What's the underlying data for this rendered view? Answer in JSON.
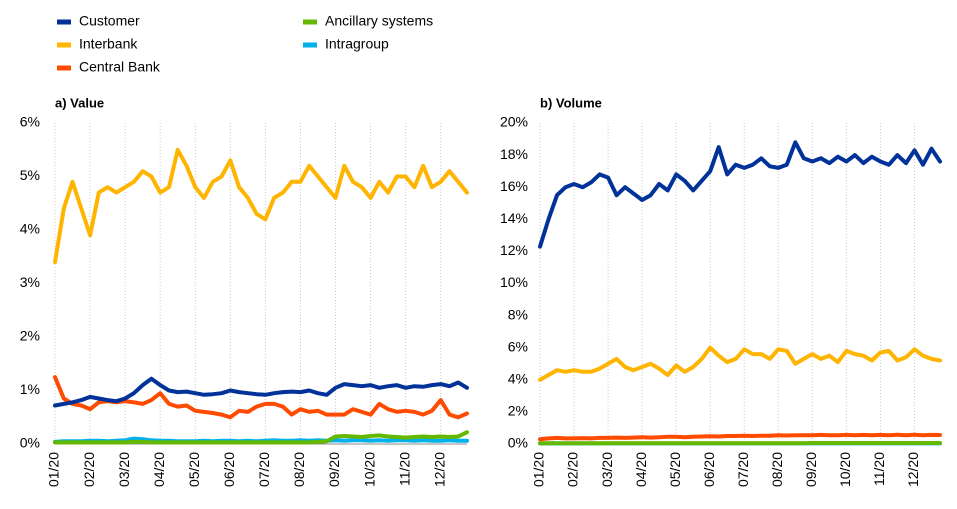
{
  "chart_data": [
    {
      "type": "line",
      "title": "a) Value",
      "categories": [
        "01/20",
        null,
        null,
        null,
        "02/20",
        null,
        null,
        null,
        "03/20",
        null,
        null,
        null,
        "04/20",
        null,
        null,
        null,
        "05/20",
        null,
        null,
        null,
        "06/20",
        null,
        null,
        null,
        "07/20",
        null,
        null,
        null,
        "08/20",
        null,
        null,
        null,
        "09/20",
        null,
        null,
        null,
        "10/20",
        null,
        null,
        null,
        "11/20",
        null,
        null,
        null,
        "12/20",
        null,
        null,
        null
      ],
      "ylim": [
        0,
        6
      ],
      "yticks": [
        {
          "value": 0,
          "label": "0%"
        },
        {
          "value": 1,
          "label": "1%"
        },
        {
          "value": 2,
          "label": "2%"
        },
        {
          "value": 3,
          "label": "3%"
        },
        {
          "value": 4,
          "label": "4%"
        },
        {
          "value": 5,
          "label": "5%"
        },
        {
          "value": 6,
          "label": "6%"
        }
      ],
      "series": [
        {
          "name": "Customer",
          "color": "#003299",
          "values": [
            0.72,
            0.75,
            0.78,
            0.82,
            0.88,
            0.85,
            0.82,
            0.8,
            0.85,
            0.95,
            1.1,
            1.22,
            1.1,
            1.0,
            0.97,
            0.98,
            0.95,
            0.92,
            0.93,
            0.95,
            1.0,
            0.97,
            0.95,
            0.93,
            0.92,
            0.95,
            0.97,
            0.98,
            0.97,
            1.0,
            0.95,
            0.92,
            1.05,
            1.12,
            1.1,
            1.08,
            1.1,
            1.05,
            1.08,
            1.1,
            1.05,
            1.08,
            1.07,
            1.1,
            1.12,
            1.08,
            1.15,
            1.05
          ]
        },
        {
          "name": "Interbank",
          "color": "#ffb400",
          "values": [
            3.4,
            4.4,
            4.9,
            4.4,
            3.9,
            4.7,
            4.8,
            4.7,
            4.8,
            4.9,
            5.1,
            5.0,
            4.7,
            4.8,
            5.5,
            5.2,
            4.8,
            4.6,
            4.9,
            5.0,
            5.3,
            4.8,
            4.6,
            4.3,
            4.2,
            4.6,
            4.7,
            4.9,
            4.9,
            5.2,
            5.0,
            4.8,
            4.6,
            5.2,
            4.9,
            4.8,
            4.6,
            4.9,
            4.7,
            5.0,
            5.0,
            4.8,
            5.2,
            4.8,
            4.9,
            5.1,
            4.9,
            4.7
          ]
        },
        {
          "name": "Central Bank",
          "color": "#ff4b00",
          "values": [
            1.25,
            0.85,
            0.75,
            0.72,
            0.65,
            0.78,
            0.8,
            0.78,
            0.8,
            0.78,
            0.75,
            0.82,
            0.95,
            0.75,
            0.7,
            0.72,
            0.62,
            0.6,
            0.58,
            0.55,
            0.5,
            0.62,
            0.6,
            0.7,
            0.75,
            0.75,
            0.7,
            0.55,
            0.65,
            0.6,
            0.62,
            0.55,
            0.55,
            0.55,
            0.65,
            0.6,
            0.55,
            0.75,
            0.65,
            0.6,
            0.62,
            0.6,
            0.55,
            0.62,
            0.82,
            0.55,
            0.5,
            0.57
          ]
        },
        {
          "name": "Ancillary systems",
          "color": "#65b800",
          "values": [
            0.03,
            0.03,
            0.03,
            0.03,
            0.03,
            0.03,
            0.03,
            0.03,
            0.03,
            0.04,
            0.04,
            0.03,
            0.03,
            0.03,
            0.03,
            0.03,
            0.03,
            0.03,
            0.03,
            0.03,
            0.03,
            0.03,
            0.03,
            0.03,
            0.03,
            0.03,
            0.03,
            0.03,
            0.03,
            0.03,
            0.04,
            0.05,
            0.14,
            0.15,
            0.14,
            0.13,
            0.15,
            0.16,
            0.14,
            0.13,
            0.12,
            0.13,
            0.14,
            0.13,
            0.14,
            0.13,
            0.14,
            0.22
          ]
        },
        {
          "name": "Intragroup",
          "color": "#00b1ea",
          "values": [
            0.04,
            0.05,
            0.05,
            0.05,
            0.06,
            0.06,
            0.05,
            0.06,
            0.07,
            0.1,
            0.09,
            0.07,
            0.06,
            0.06,
            0.05,
            0.05,
            0.05,
            0.06,
            0.05,
            0.06,
            0.06,
            0.05,
            0.06,
            0.05,
            0.06,
            0.07,
            0.06,
            0.06,
            0.07,
            0.06,
            0.07,
            0.06,
            0.07,
            0.06,
            0.07,
            0.07,
            0.06,
            0.07,
            0.06,
            0.07,
            0.07,
            0.06,
            0.07,
            0.06,
            0.06,
            0.07,
            0.06,
            0.06
          ]
        }
      ]
    },
    {
      "type": "line",
      "title": "b) Volume",
      "categories": [
        "01/20",
        null,
        null,
        null,
        "02/20",
        null,
        null,
        null,
        "03/20",
        null,
        null,
        null,
        "04/20",
        null,
        null,
        null,
        "05/20",
        null,
        null,
        null,
        "06/20",
        null,
        null,
        null,
        "07/20",
        null,
        null,
        null,
        "08/20",
        null,
        null,
        null,
        "09/20",
        null,
        null,
        null,
        "10/20",
        null,
        null,
        null,
        "11/20",
        null,
        null,
        null,
        "12/20",
        null,
        null,
        null
      ],
      "ylim": [
        0,
        20
      ],
      "yticks": [
        {
          "value": 0,
          "label": "0%"
        },
        {
          "value": 2,
          "label": "2%"
        },
        {
          "value": 4,
          "label": "4%"
        },
        {
          "value": 6,
          "label": "6%"
        },
        {
          "value": 8,
          "label": "8%"
        },
        {
          "value": 10,
          "label": "10%"
        },
        {
          "value": 12,
          "label": "12%"
        },
        {
          "value": 14,
          "label": "14%"
        },
        {
          "value": 16,
          "label": "16%"
        },
        {
          "value": 18,
          "label": "18%"
        },
        {
          "value": 20,
          "label": "20%"
        }
      ],
      "series": [
        {
          "name": "Customer",
          "color": "#003299",
          "values": [
            12.3,
            14,
            15.5,
            16,
            16.2,
            16,
            16.3,
            16.8,
            16.6,
            15.5,
            16,
            15.6,
            15.2,
            15.5,
            16.2,
            15.8,
            16.8,
            16.4,
            15.8,
            16.4,
            17,
            18.5,
            16.8,
            17.4,
            17.2,
            17.4,
            17.8,
            17.3,
            17.2,
            17.4,
            18.8,
            17.8,
            17.6,
            17.8,
            17.5,
            17.9,
            17.6,
            18,
            17.5,
            17.9,
            17.6,
            17.4,
            18,
            17.5,
            18.3,
            17.4,
            18.4,
            17.6
          ]
        },
        {
          "name": "Interbank",
          "color": "#ffb400",
          "values": [
            4.0,
            4.3,
            4.6,
            4.5,
            4.6,
            4.5,
            4.5,
            4.7,
            5.0,
            5.3,
            4.8,
            4.6,
            4.8,
            5.0,
            4.7,
            4.3,
            4.9,
            4.5,
            4.8,
            5.3,
            6.0,
            5.5,
            5.1,
            5.3,
            5.9,
            5.6,
            5.6,
            5.3,
            5.9,
            5.8,
            5.0,
            5.3,
            5.6,
            5.3,
            5.5,
            5.1,
            5.8,
            5.6,
            5.5,
            5.2,
            5.7,
            5.8,
            5.2,
            5.4,
            5.9,
            5.5,
            5.3,
            5.2
          ]
        },
        {
          "name": "Central Bank",
          "color": "#ff4b00",
          "values": [
            0.3,
            0.35,
            0.38,
            0.35,
            0.35,
            0.37,
            0.35,
            0.38,
            0.38,
            0.4,
            0.38,
            0.4,
            0.42,
            0.4,
            0.42,
            0.45,
            0.45,
            0.42,
            0.45,
            0.47,
            0.48,
            0.47,
            0.5,
            0.5,
            0.52,
            0.5,
            0.52,
            0.52,
            0.55,
            0.53,
            0.55,
            0.55,
            0.55,
            0.57,
            0.55,
            0.55,
            0.57,
            0.55,
            0.57,
            0.55,
            0.57,
            0.55,
            0.58,
            0.55,
            0.58,
            0.55,
            0.57,
            0.56
          ]
        },
        {
          "name": "Ancillary systems",
          "color": "#65b800",
          "values": [
            0.05,
            0.05,
            0.05,
            0.05,
            0.05,
            0.05,
            0.05,
            0.05,
            0.05,
            0.05,
            0.05,
            0.05,
            0.05,
            0.05,
            0.05,
            0.05,
            0.05,
            0.05,
            0.05,
            0.05,
            0.05,
            0.05,
            0.05,
            0.05,
            0.05,
            0.05,
            0.05,
            0.05,
            0.05,
            0.05,
            0.05,
            0.05,
            0.06,
            0.06,
            0.06,
            0.06,
            0.06,
            0.06,
            0.06,
            0.06,
            0.06,
            0.06,
            0.06,
            0.06,
            0.06,
            0.06,
            0.06,
            0.06
          ]
        },
        {
          "name": "Intragroup",
          "color": "#00b1ea",
          "values": [
            0.04,
            0.04,
            0.04,
            0.04,
            0.04,
            0.04,
            0.04,
            0.04,
            0.04,
            0.04,
            0.04,
            0.04,
            0.04,
            0.04,
            0.04,
            0.04,
            0.04,
            0.04,
            0.04,
            0.04,
            0.04,
            0.04,
            0.04,
            0.04,
            0.04,
            0.04,
            0.04,
            0.04,
            0.04,
            0.04,
            0.04,
            0.04,
            0.04,
            0.04,
            0.04,
            0.04,
            0.04,
            0.04,
            0.04,
            0.04,
            0.04,
            0.04,
            0.04,
            0.04,
            0.04,
            0.04,
            0.04,
            0.04
          ]
        }
      ]
    }
  ]
}
